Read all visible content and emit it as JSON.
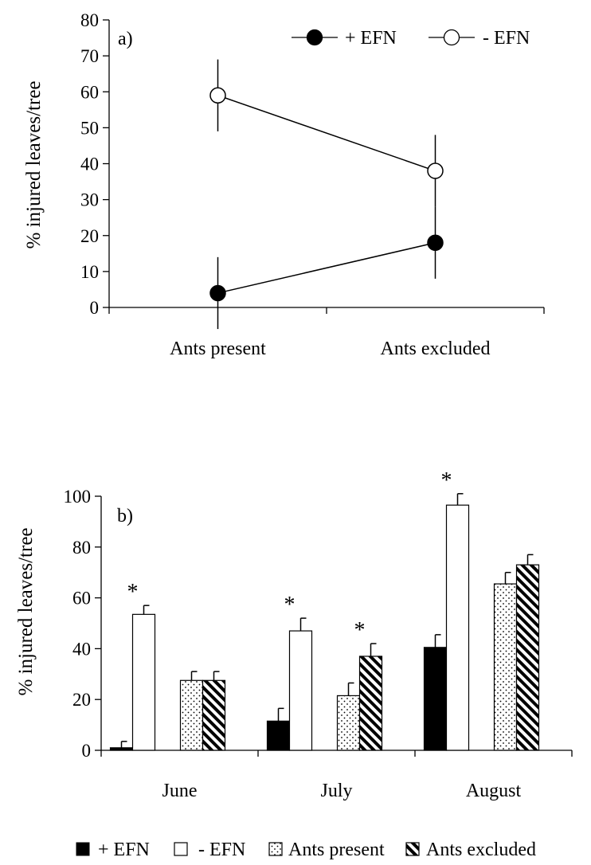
{
  "chart_data": [
    {
      "type": "line",
      "panel_label": "a)",
      "ylabel": "% injured leaves/tree",
      "ylim": [
        0,
        80
      ],
      "yticks": [
        0,
        10,
        20,
        30,
        40,
        50,
        60,
        70,
        80
      ],
      "categories": [
        "Ants present",
        "Ants excluded"
      ],
      "legend_position": "top-right",
      "series": [
        {
          "name": "+ EFN",
          "marker": "filled-circle",
          "values": [
            4,
            18
          ],
          "errors": [
            10,
            10
          ]
        },
        {
          "name": "- EFN",
          "marker": "open-circle",
          "values": [
            59,
            38
          ],
          "errors": [
            10,
            10
          ]
        }
      ]
    },
    {
      "type": "bar",
      "panel_label": "b)",
      "ylabel": "% injured leaves/tree",
      "ylim": [
        0,
        100
      ],
      "yticks": [
        0,
        20,
        40,
        60,
        80,
        100
      ],
      "categories": [
        "June",
        "July",
        "August"
      ],
      "legend_position": "bottom",
      "series": [
        {
          "name": "+ EFN",
          "fill": "solid",
          "values": [
            1,
            11.5,
            40.5
          ],
          "errors": [
            2.5,
            5,
            5
          ]
        },
        {
          "name": "- EFN",
          "fill": "open",
          "values": [
            53.5,
            47,
            96.5
          ],
          "errors": [
            3.5,
            5,
            4.5
          ]
        },
        {
          "name": "Ants present",
          "fill": "dotted",
          "values": [
            27.5,
            21.5,
            65.5
          ],
          "errors": [
            3.5,
            5,
            4.5
          ]
        },
        {
          "name": "Ants excluded",
          "fill": "hatched",
          "values": [
            27.5,
            37,
            73
          ],
          "errors": [
            3.5,
            5,
            4
          ]
        }
      ],
      "annotations": [
        {
          "text": "*",
          "category": "June",
          "pair": "EFN"
        },
        {
          "text": "*",
          "category": "July",
          "pair": "EFN"
        },
        {
          "text": "*",
          "category": "July",
          "pair": "Ants"
        },
        {
          "text": "*",
          "category": "August",
          "pair": "EFN"
        }
      ]
    }
  ]
}
